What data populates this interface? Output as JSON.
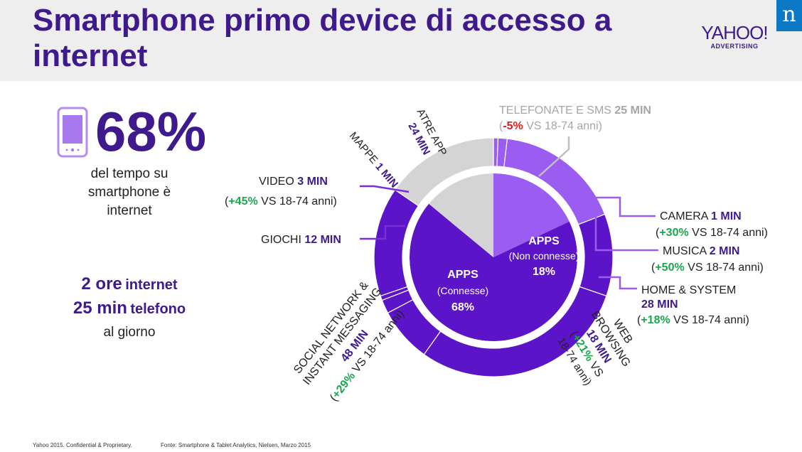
{
  "header": {
    "title": "Smartphone primo device di accesso a internet",
    "yahoo_logo": "YAHOO!",
    "yahoo_logo_sub": "ADVERTISING",
    "nielsen_logo": "n"
  },
  "summary": {
    "big_stat": "68%",
    "caption": "del tempo su smartphone è internet",
    "ore_value": "2 ore",
    "ore_label": "internet",
    "min_value": "25 min",
    "min_label": "telefono",
    "period": "al giorno"
  },
  "colors": {
    "brand_purple": "#3e1a8c",
    "apps_connesse": "#5b14c8",
    "apps_non_connesse": "#9b5cf2",
    "telefonate": "#d4d4d4",
    "positive": "#1aa84f",
    "negative": "#e01b1b"
  },
  "chart_data": {
    "type": "pie",
    "inner": [
      {
        "name": "APPS",
        "sub": "(Connesse)",
        "value": 68,
        "label": "68%"
      },
      {
        "name": "APPS",
        "sub": "(Non connesse)",
        "value": 18,
        "label": "18%"
      },
      {
        "name": "TELEFONATE E SMS",
        "value": 14
      }
    ],
    "outer_unit": "MIN",
    "outer": [
      {
        "id": "web",
        "group": "connesse",
        "label": "WEB BROWSING",
        "minutes": 18,
        "minutes_label": "18 MIN",
        "delta": "+21%",
        "compare": "VS 18-74 anni"
      },
      {
        "id": "social",
        "group": "connesse",
        "label": "SOCIAL NETWORK & INSTANT MESSAGING",
        "minutes": 48,
        "minutes_label": "48 MIN",
        "delta": "+29%",
        "compare": "VS 18-74 anni"
      },
      {
        "id": "giochi",
        "group": "connesse",
        "label": "GIOCHI",
        "minutes": 12,
        "minutes_label": "12 MIN"
      },
      {
        "id": "video",
        "group": "connesse",
        "label": "VIDEO",
        "minutes": 3,
        "minutes_label": "3 MIN",
        "delta": "+45%",
        "compare": "VS 18-74 anni"
      },
      {
        "id": "mappe",
        "group": "connesse",
        "label": "MAPPE",
        "minutes": 1,
        "minutes_label": "1 MIN"
      },
      {
        "id": "altre",
        "group": "connesse",
        "label": "ATRE APP",
        "minutes": 24,
        "minutes_label": "24 MIN"
      },
      {
        "id": "telefonate",
        "group": "telefonate",
        "label": "TELEFONATE E SMS",
        "minutes": 25,
        "minutes_label": "25 MIN",
        "delta": "-5%",
        "compare": "VS 18-74 anni"
      },
      {
        "id": "camera",
        "group": "non_connesse",
        "label": "CAMERA",
        "minutes": 1,
        "minutes_label": "1 MIN",
        "delta": "+30%",
        "compare": "VS 18-74 anni"
      },
      {
        "id": "musica",
        "group": "non_connesse",
        "label": "MUSICA",
        "minutes": 2,
        "minutes_label": "2 MIN",
        "delta": "+50%",
        "compare": "VS 18-74 anni"
      },
      {
        "id": "home",
        "group": "non_connesse",
        "label": "HOME & SYSTEM",
        "minutes": 28,
        "minutes_label": "28 MIN",
        "delta": "+18%",
        "compare": "VS 18-74 anni"
      }
    ]
  },
  "footer": {
    "left": "Yahoo 2015. Confidential & Proprietary.",
    "source": "Fonte: Smartphone & Tablet Analytics, Nielsen, Marzo 2015"
  }
}
